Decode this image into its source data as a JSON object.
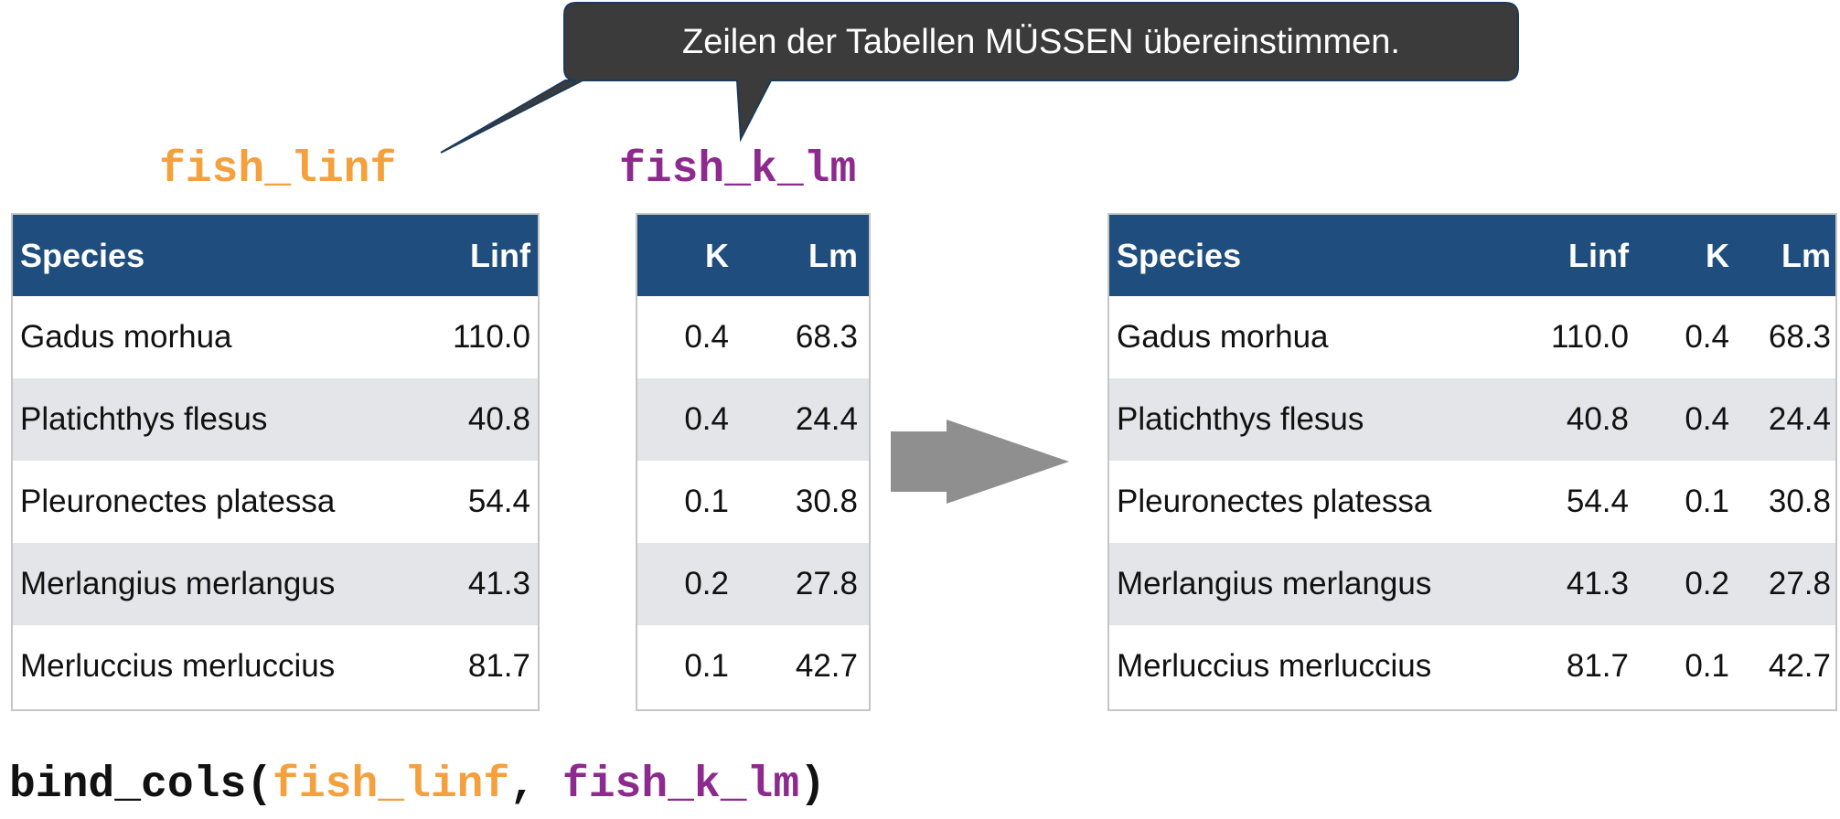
{
  "callout": {
    "text": "Zeilen der Tabellen MÜSSEN übereinstimmen."
  },
  "titles": {
    "left": "fish_linf",
    "middle": "fish_k_lm"
  },
  "colors": {
    "header_bg": "#1f4e7e",
    "stripe": "#e4e5e9",
    "callout_bg": "#3b3b3b",
    "arrow": "#8f8f8f",
    "orange": "#f3a03d",
    "purple": "#8c2a8e"
  },
  "table_linf": {
    "headers": [
      "Species",
      "Linf"
    ],
    "rows": [
      [
        "Gadus morhua",
        "110.0"
      ],
      [
        "Platichthys flesus",
        "40.8"
      ],
      [
        "Pleuronectes platessa",
        "54.4"
      ],
      [
        "Merlangius merlangus",
        "41.3"
      ],
      [
        "Merluccius merluccius",
        "81.7"
      ]
    ]
  },
  "table_k_lm": {
    "headers": [
      "K",
      "Lm"
    ],
    "rows": [
      [
        "0.4",
        "68.3"
      ],
      [
        "0.4",
        "24.4"
      ],
      [
        "0.1",
        "30.8"
      ],
      [
        "0.2",
        "27.8"
      ],
      [
        "0.1",
        "42.7"
      ]
    ]
  },
  "table_result": {
    "headers": [
      "Species",
      "Linf",
      "K",
      "Lm"
    ],
    "rows": [
      [
        "Gadus morhua",
        "110.0",
        "0.4",
        "68.3"
      ],
      [
        "Platichthys flesus",
        "40.8",
        "0.4",
        "24.4"
      ],
      [
        "Pleuronectes platessa",
        "54.4",
        "0.1",
        "30.8"
      ],
      [
        "Merlangius merlangus",
        "41.3",
        "0.2",
        "27.8"
      ],
      [
        "Merluccius merluccius",
        "81.7",
        "0.1",
        "42.7"
      ]
    ]
  },
  "code": {
    "func": "bind_cols(",
    "arg1": "fish_linf",
    "sep": ", ",
    "arg2": "fish_k_lm",
    "close": ")"
  }
}
